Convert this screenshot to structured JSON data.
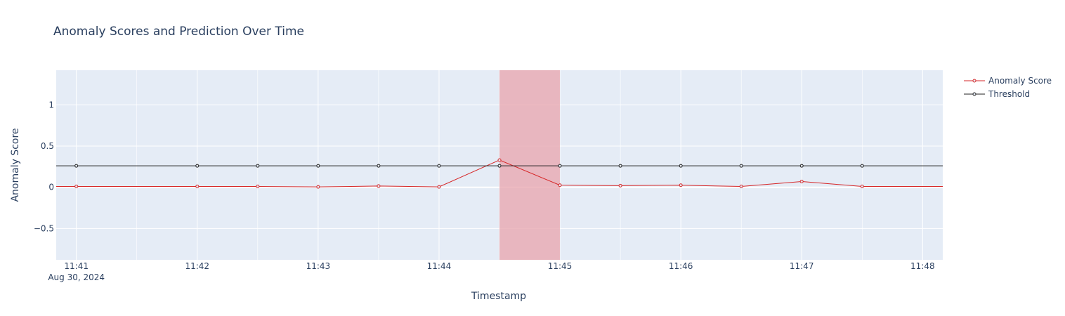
{
  "chart_data": {
    "type": "line",
    "title": "Anomaly Scores and Prediction Over Time",
    "xlabel": "Timestamp",
    "ylabel": "Anomaly Score",
    "x_date_label": "Aug 30, 2024",
    "x_ticks": [
      "11:41",
      "11:42",
      "11:43",
      "11:44",
      "11:45",
      "11:46",
      "11:47",
      "11:48"
    ],
    "x_range": [
      "2024-08-30 11:40:50",
      "2024-08-30 11:48:10"
    ],
    "y_ticks": [
      1,
      0.5,
      0,
      -0.5
    ],
    "y_tick_labels": [
      "1",
      "0.5",
      "0",
      "−0.5"
    ],
    "ylim": [
      -0.88,
      1.42
    ],
    "grid": true,
    "legend_position": "top-right",
    "highlight_region": {
      "x_start": "2024-08-30 11:44:30",
      "x_end": "2024-08-30 11:45:00",
      "color": "#e8a9b1"
    },
    "series": [
      {
        "name": "Anomaly Score",
        "color": "#d62728",
        "extends_to_edges": true,
        "points": [
          [
            "2024-08-30 11:41:00",
            0.01
          ],
          [
            "2024-08-30 11:42:00",
            0.01
          ],
          [
            "2024-08-30 11:42:30",
            0.01
          ],
          [
            "2024-08-30 11:43:00",
            0.005
          ],
          [
            "2024-08-30 11:43:30",
            0.015
          ],
          [
            "2024-08-30 11:44:00",
            0.005
          ],
          [
            "2024-08-30 11:44:30",
            0.33
          ],
          [
            "2024-08-30 11:45:00",
            0.025
          ],
          [
            "2024-08-30 11:45:30",
            0.02
          ],
          [
            "2024-08-30 11:46:00",
            0.025
          ],
          [
            "2024-08-30 11:46:30",
            0.01
          ],
          [
            "2024-08-30 11:47:00",
            0.07
          ],
          [
            "2024-08-30 11:47:30",
            0.01
          ]
        ]
      },
      {
        "name": "Threshold",
        "color": "#222222",
        "extends_to_edges": true,
        "points": [
          [
            "2024-08-30 11:41:00",
            0.26
          ],
          [
            "2024-08-30 11:42:00",
            0.26
          ],
          [
            "2024-08-30 11:42:30",
            0.26
          ],
          [
            "2024-08-30 11:43:00",
            0.26
          ],
          [
            "2024-08-30 11:43:30",
            0.26
          ],
          [
            "2024-08-30 11:44:00",
            0.26
          ],
          [
            "2024-08-30 11:44:30",
            0.26
          ],
          [
            "2024-08-30 11:45:00",
            0.26
          ],
          [
            "2024-08-30 11:45:30",
            0.26
          ],
          [
            "2024-08-30 11:46:00",
            0.26
          ],
          [
            "2024-08-30 11:46:30",
            0.26
          ],
          [
            "2024-08-30 11:47:00",
            0.26
          ],
          [
            "2024-08-30 11:47:30",
            0.26
          ]
        ]
      }
    ],
    "colors": {
      "plot_background": "#e5ecf6",
      "grid": "#ffffff",
      "text": "#2a3f5f"
    }
  }
}
